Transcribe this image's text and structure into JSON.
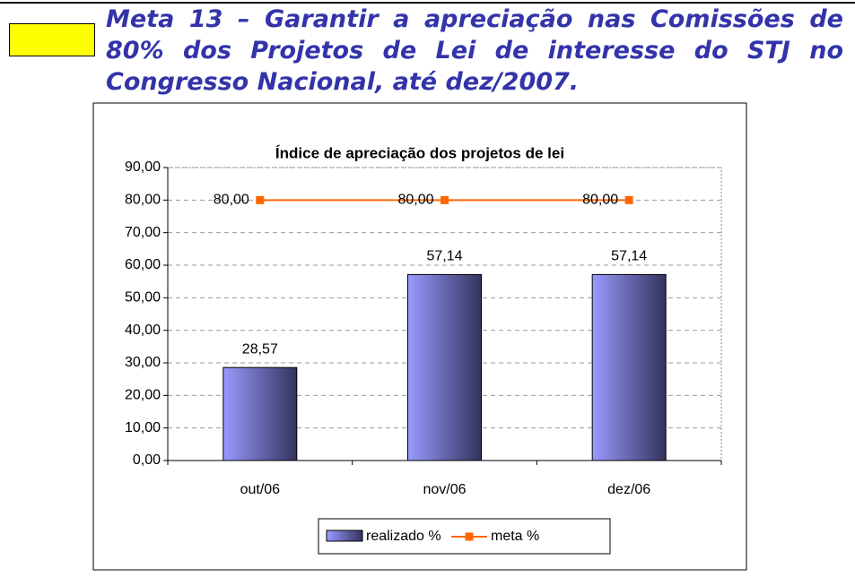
{
  "heading": [
    "Meta 13 – Garantir a apreciação nas Comissões de",
    "80% dos Projetos de Lei de interesse do STJ no",
    "Congresso Nacional, até dez/2007."
  ],
  "chart_data": {
    "type": "bar",
    "title": "Índice de apreciação dos projetos de lei",
    "categories": [
      "out/06",
      "nov/06",
      "dez/06"
    ],
    "series": [
      {
        "name": "realizado %",
        "type": "bar",
        "color": "#8080ff",
        "values": [
          28.57,
          57.14,
          57.14
        ],
        "value_labels": [
          "28,57",
          "57,14",
          "57,14"
        ]
      },
      {
        "name": "meta %",
        "type": "line",
        "color": "#ff6600",
        "values": [
          80,
          80,
          80
        ],
        "value_labels": [
          "80,00",
          "80,00",
          "80,00"
        ]
      }
    ],
    "ylim": [
      0,
      90
    ],
    "yticks": [
      {
        "value": 0,
        "label": "0,00"
      },
      {
        "value": 10,
        "label": "10,00"
      },
      {
        "value": 20,
        "label": "20,00"
      },
      {
        "value": 30,
        "label": "30,00"
      },
      {
        "value": 40,
        "label": "40,00"
      },
      {
        "value": 50,
        "label": "50,00"
      },
      {
        "value": 60,
        "label": "60,00"
      },
      {
        "value": 70,
        "label": "70,00"
      },
      {
        "value": 80,
        "label": "80,00"
      },
      {
        "value": 90,
        "label": "90,00"
      }
    ],
    "grid": true,
    "legend": "bottom"
  }
}
